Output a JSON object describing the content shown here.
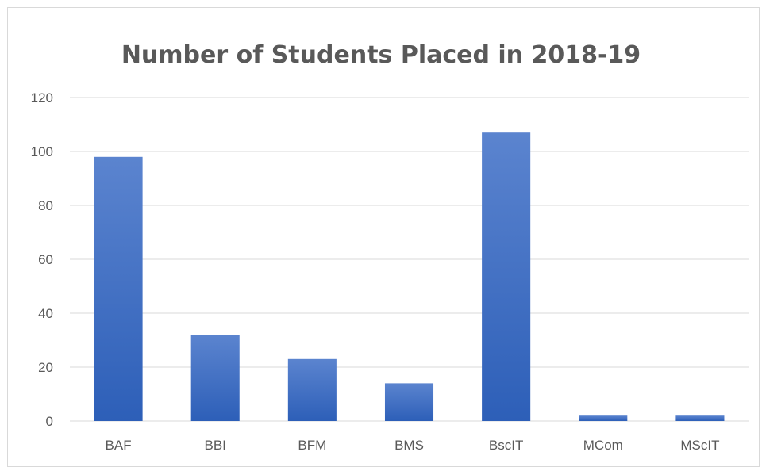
{
  "chart_data": {
    "type": "bar",
    "title": "Number of Students Placed in 2018-19",
    "xlabel": "",
    "ylabel": "",
    "categories": [
      "BAF",
      "BBI",
      "BFM",
      "BMS",
      "BscIT",
      "MCom",
      "MScIT"
    ],
    "values": [
      98,
      32,
      23,
      14,
      107,
      2,
      2
    ],
    "ylim": [
      0,
      120
    ],
    "yticks": [
      0,
      20,
      40,
      60,
      80,
      100,
      120
    ],
    "grid": true,
    "legend": "none",
    "colors": {
      "bar_top": "#5b84cf",
      "bar_bottom": "#2d5fb8",
      "grid": "#d9d9d9",
      "text": "#595959"
    }
  }
}
